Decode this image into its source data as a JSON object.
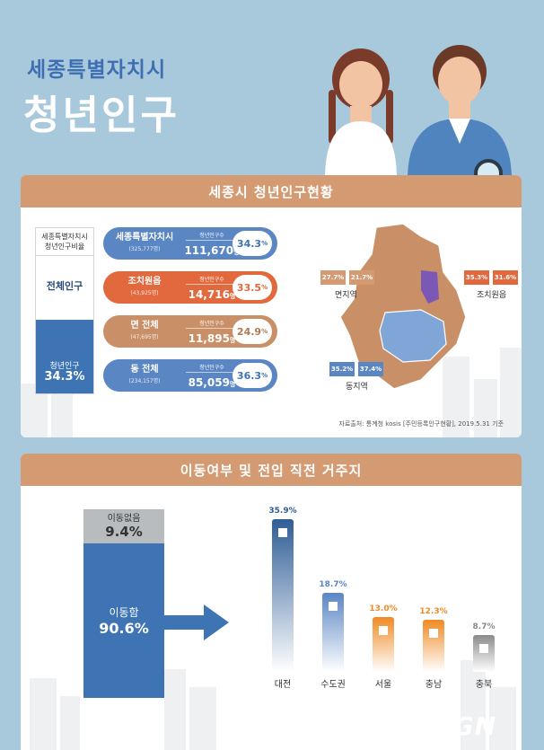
{
  "title": {
    "line1": "세종특별자치시",
    "line2": "청년인구"
  },
  "section1": {
    "header": "세종시 청년인구현황",
    "left_box": {
      "title1": "세종특별자치시",
      "title2": "청년인구비율",
      "total_label": "전체인구",
      "youth_label": "청년인구",
      "youth_pct": "34.3%",
      "fill_fraction": 0.343
    },
    "rows": [
      {
        "name": "세종특별자치시",
        "sub": "(325,777명)",
        "label": "청년인구수",
        "num": "111,670",
        "unit": "명",
        "pct": "34.3",
        "pct_unit": "%",
        "color": "#5a86c4"
      },
      {
        "name": "조치원읍",
        "sub": "(43,925명)",
        "label": "청년인구수",
        "num": "14,716",
        "unit": "명",
        "pct": "33.5",
        "pct_unit": "%",
        "color": "#e2683e"
      },
      {
        "name": "면 전체",
        "sub": "(47,695명)",
        "label": "청년인구수",
        "num": "11,895",
        "unit": "명",
        "pct": "24.9",
        "pct_unit": "%",
        "color": "#c98f66"
      },
      {
        "name": "동 전체",
        "sub": "(234,157명)",
        "label": "청년인구수",
        "num": "85,059",
        "unit": "명",
        "pct": "36.3",
        "pct_unit": "%",
        "color": "#5a86c4"
      }
    ],
    "map": {
      "myeon": {
        "label": "면지역",
        "male": "27.7%",
        "female": "21.7%"
      },
      "jochiwon": {
        "label": "조치원읍",
        "male": "35.3%",
        "female": "31.6%"
      },
      "dong": {
        "label": "동지역",
        "male": "35.2%",
        "female": "37.4%"
      }
    },
    "source": "자료출처: 통계청 kosis [주민등록인구현황], 2019.5.31 기준"
  },
  "section2": {
    "header": "이동여부 및 전입 직전 거주지",
    "no_move": {
      "label": "이동없음",
      "value": "9.4%",
      "fraction": 0.094
    },
    "move": {
      "label": "이동함",
      "value": "90.6%",
      "fraction": 0.906
    }
  },
  "chart_data": {
    "type": "bar",
    "categories": [
      "대전",
      "수도권",
      "서울",
      "충남",
      "충북"
    ],
    "values": [
      35.9,
      18.7,
      13.0,
      12.3,
      8.7
    ],
    "value_labels": [
      "35.9%",
      "18.7%",
      "13.0%",
      "12.3%",
      "8.7%"
    ],
    "colors": [
      "#2f5d96",
      "#5a86c4",
      "#f08a24",
      "#f08a24",
      "#8a8a8a"
    ],
    "title": "",
    "xlabel": "",
    "ylabel": ""
  },
  "logo": "TGN"
}
